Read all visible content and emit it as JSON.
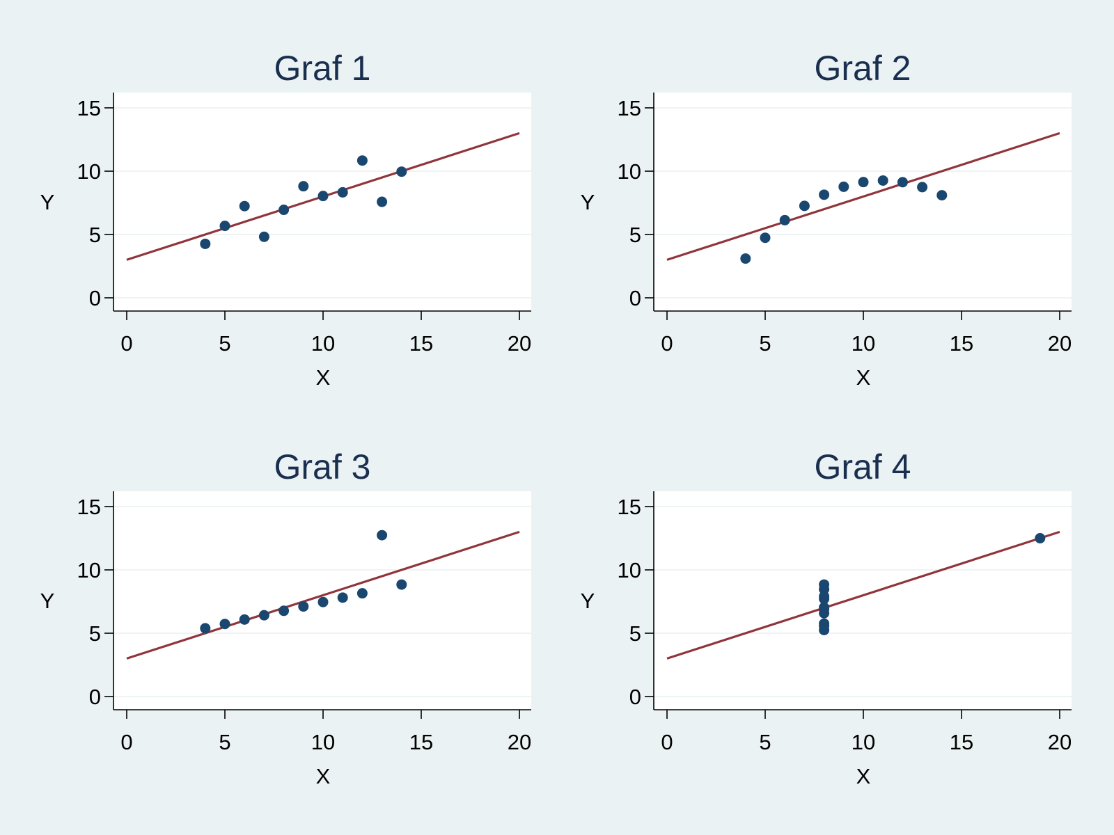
{
  "colors": {
    "background": "#eaf2f3",
    "plot_background": "#ffffff",
    "gridline": "#e8eff0",
    "marker": "#1a476f",
    "fit_line": "#90353b",
    "title": "#1a2f4f"
  },
  "chart_data": [
    {
      "type": "scatter",
      "title": "Graf 1",
      "xlabel": "X",
      "ylabel": "Y",
      "xlim": [
        0,
        20
      ],
      "ylim": [
        0,
        15
      ],
      "xticks": [
        "0",
        "5",
        "10",
        "15",
        "20"
      ],
      "yticks": [
        "0",
        "5",
        "10",
        "15"
      ],
      "grid": true,
      "x": [
        4,
        5,
        6,
        7,
        8,
        9,
        10,
        11,
        12,
        13,
        14
      ],
      "y": [
        4.26,
        5.68,
        7.24,
        4.82,
        6.95,
        8.81,
        8.04,
        8.33,
        10.84,
        7.58,
        9.96
      ],
      "fit_line": {
        "x": [
          0,
          20
        ],
        "y": [
          3,
          13
        ]
      }
    },
    {
      "type": "scatter",
      "title": "Graf 2",
      "xlabel": "X",
      "ylabel": "Y",
      "xlim": [
        0,
        20
      ],
      "ylim": [
        0,
        15
      ],
      "xticks": [
        "0",
        "5",
        "10",
        "15",
        "20"
      ],
      "yticks": [
        "0",
        "5",
        "10",
        "15"
      ],
      "grid": true,
      "x": [
        4,
        5,
        6,
        7,
        8,
        9,
        10,
        11,
        12,
        13,
        14
      ],
      "y": [
        3.1,
        4.74,
        6.13,
        7.26,
        8.14,
        8.77,
        9.14,
        9.26,
        9.13,
        8.74,
        8.1
      ],
      "fit_line": {
        "x": [
          0,
          20
        ],
        "y": [
          3,
          13
        ]
      }
    },
    {
      "type": "scatter",
      "title": "Graf 3",
      "xlabel": "X",
      "ylabel": "Y",
      "xlim": [
        0,
        20
      ],
      "ylim": [
        0,
        15
      ],
      "xticks": [
        "0",
        "5",
        "10",
        "15",
        "20"
      ],
      "yticks": [
        "0",
        "5",
        "10",
        "15"
      ],
      "grid": true,
      "x": [
        4,
        5,
        6,
        7,
        8,
        9,
        10,
        11,
        12,
        13,
        14
      ],
      "y": [
        5.39,
        5.73,
        6.08,
        6.42,
        6.77,
        7.11,
        7.46,
        7.81,
        8.15,
        12.74,
        8.84
      ],
      "fit_line": {
        "x": [
          0,
          20
        ],
        "y": [
          3,
          13
        ]
      }
    },
    {
      "type": "scatter",
      "title": "Graf 4",
      "xlabel": "X",
      "ylabel": "Y",
      "xlim": [
        0,
        20
      ],
      "ylim": [
        0,
        15
      ],
      "xticks": [
        "0",
        "5",
        "10",
        "15",
        "20"
      ],
      "yticks": [
        "0",
        "5",
        "10",
        "15"
      ],
      "grid": true,
      "x": [
        8,
        8,
        8,
        8,
        8,
        8,
        8,
        19,
        8,
        8,
        8
      ],
      "y": [
        6.58,
        5.76,
        7.71,
        8.84,
        8.47,
        7.04,
        5.25,
        12.5,
        5.56,
        7.91,
        6.89
      ],
      "fit_line": {
        "x": [
          0,
          20
        ],
        "y": [
          3,
          13
        ]
      }
    }
  ]
}
